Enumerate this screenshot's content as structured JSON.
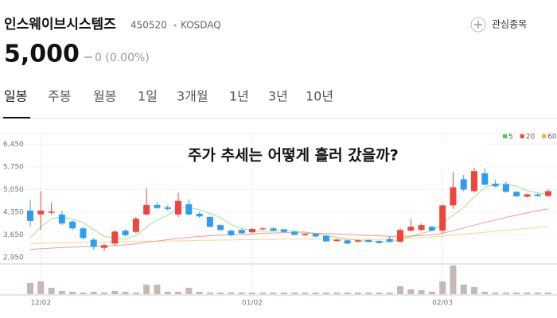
{
  "stock": {
    "name": "인스웨이브시스템즈",
    "code": "450520",
    "market": "KOSDAQ",
    "watch_label": "관심종목",
    "price": "5,000",
    "change": "0 (0.00%)"
  },
  "tabs": [
    "일봉",
    "주봉",
    "월봉",
    "1일",
    "3개월",
    "1년",
    "3년",
    "10년"
  ],
  "annotation": "주가 추세는 어떻게 흘러 갔을까?",
  "chart_data": {
    "type": "candlestick",
    "categories": [
      null,
      "12/02",
      null,
      null,
      null,
      null,
      null,
      null,
      null,
      null,
      null,
      null,
      null,
      null,
      null,
      null,
      null,
      null,
      null,
      null,
      null,
      "01/02",
      null,
      null,
      null,
      null,
      null,
      null,
      null,
      null,
      null,
      null,
      null,
      null,
      null,
      null,
      null,
      null,
      null,
      "02/03",
      null,
      null,
      null,
      null,
      null,
      null,
      null,
      null,
      null,
      null
    ],
    "open": [
      4400,
      4280,
      4330,
      4280,
      4060,
      3850,
      3500,
      3250,
      3380,
      3780,
      3740,
      4280,
      4570,
      4500,
      4280,
      4600,
      4300,
      4200,
      3950,
      3780,
      3800,
      3730,
      3820,
      3850,
      3820,
      3750,
      3640,
      3680,
      3620,
      3460,
      3480,
      3440,
      3490,
      3460,
      3520,
      3440,
      3780,
      3800,
      3900,
      3780,
      4560,
      5370,
      5000,
      5550,
      5230,
      5220,
      4980,
      4830,
      4900,
      4850
    ],
    "high": [
      4730,
      5000,
      4650,
      4400,
      4100,
      3900,
      3550,
      3380,
      3800,
      3820,
      4200,
      5100,
      4650,
      4560,
      4950,
      4750,
      4350,
      4230,
      3980,
      3800,
      3830,
      3860,
      3880,
      3880,
      3840,
      3760,
      3700,
      3700,
      3640,
      3520,
      3500,
      3500,
      3510,
      3480,
      3600,
      3850,
      4150,
      4000,
      3920,
      4580,
      5600,
      5500,
      5870,
      5700,
      5350,
      5300,
      5000,
      4920,
      4930,
      5050
    ],
    "low": [
      3900,
      3800,
      4280,
      3950,
      3800,
      3500,
      3200,
      3150,
      3300,
      3600,
      3700,
      4250,
      4450,
      4400,
      4200,
      4250,
      4180,
      3880,
      3780,
      3600,
      3680,
      3700,
      3800,
      3760,
      3720,
      3630,
      3620,
      3580,
      3430,
      3440,
      3360,
      3420,
      3420,
      3380,
      3420,
      3400,
      3760,
      3780,
      3760,
      3700,
      4450,
      5000,
      4950,
      5180,
      5120,
      4950,
      4820,
      4800,
      4830,
      4830
    ],
    "close": [
      4080,
      4400,
      4370,
      4000,
      3850,
      3550,
      3280,
      3330,
      3750,
      3640,
      4150,
      4570,
      4480,
      4450,
      4700,
      4280,
      4220,
      3900,
      3800,
      3640,
      3700,
      3830,
      3850,
      3780,
      3740,
      3650,
      3680,
      3600,
      3450,
      3500,
      3380,
      3480,
      3430,
      3400,
      3440,
      3800,
      3900,
      3950,
      3780,
      4560,
      5120,
      5050,
      5620,
      5200,
      5150,
      4980,
      4840,
      4900,
      4850,
      5000
    ],
    "volume": [
      14,
      16,
      8,
      4,
      3,
      2,
      3,
      2,
      4,
      3,
      2,
      12,
      12,
      3,
      3,
      8,
      3,
      2,
      2,
      2,
      2,
      2,
      2,
      2,
      2,
      2,
      2,
      2,
      2,
      2,
      2,
      2,
      2,
      2,
      2,
      10,
      6,
      5,
      3,
      16,
      36,
      12,
      9,
      3,
      2,
      2,
      2,
      2,
      2,
      2
    ],
    "up_color": "#f0453c",
    "down_color": "#2e9cf0",
    "volume_color": "#c6b8b5",
    "series": [
      {
        "name": "5",
        "color": "#3fcf3f",
        "values": [
          3550,
          3900,
          4150,
          4200,
          4140,
          4034,
          3810,
          3602,
          3552,
          3510,
          3630,
          3888,
          4118,
          4258,
          4470,
          4496,
          4426,
          4310,
          4180,
          3968,
          3852,
          3774,
          3764,
          3760,
          3780,
          3770,
          3740,
          3690,
          3624,
          3576,
          3522,
          3482,
          3448,
          3438,
          3426,
          3510,
          3594,
          3698,
          3774,
          3998,
          4262,
          4492,
          4826,
          5110,
          5228,
          5200,
          5158,
          5014,
          4944,
          4914
        ]
      },
      {
        "name": "20",
        "color": "#f0453c",
        "values": [
          3200,
          3220,
          3240,
          3260,
          3270,
          3280,
          3290,
          3300,
          3320,
          3340,
          3370,
          3420,
          3460,
          3500,
          3540,
          3570,
          3600,
          3620,
          3640,
          3650,
          3660,
          3680,
          3700,
          3710,
          3720,
          3720,
          3710,
          3700,
          3690,
          3680,
          3660,
          3640,
          3630,
          3620,
          3600,
          3600,
          3610,
          3630,
          3650,
          3700,
          3780,
          3860,
          3950,
          4030,
          4110,
          4190,
          4260,
          4330,
          4400,
          4450
        ]
      },
      {
        "name": "60",
        "color": "#f5b22a",
        "values": [
          3380,
          3390,
          3400,
          3400,
          3410,
          3420,
          3420,
          3430,
          3430,
          3440,
          3440,
          3450,
          3450,
          3460,
          3460,
          3470,
          3480,
          3480,
          3490,
          3490,
          3500,
          3500,
          3510,
          3510,
          3520,
          3520,
          3520,
          3520,
          3520,
          3520,
          3510,
          3510,
          3510,
          3510,
          3520,
          3530,
          3540,
          3560,
          3580,
          3610,
          3640,
          3670,
          3700,
          3730,
          3760,
          3790,
          3820,
          3850,
          3880,
          3910
        ]
      }
    ],
    "ylim": [
      2800,
      6780
    ],
    "yticks": [
      {
        "value": 6450,
        "label": "6,450"
      },
      {
        "value": 5750,
        "label": "5,750"
      },
      {
        "value": 5050,
        "label": "5,050"
      },
      {
        "value": 4350,
        "label": "4,350"
      },
      {
        "value": 3650,
        "label": "3,650"
      },
      {
        "value": 2950,
        "label": "2,950"
      }
    ],
    "grid": true
  }
}
